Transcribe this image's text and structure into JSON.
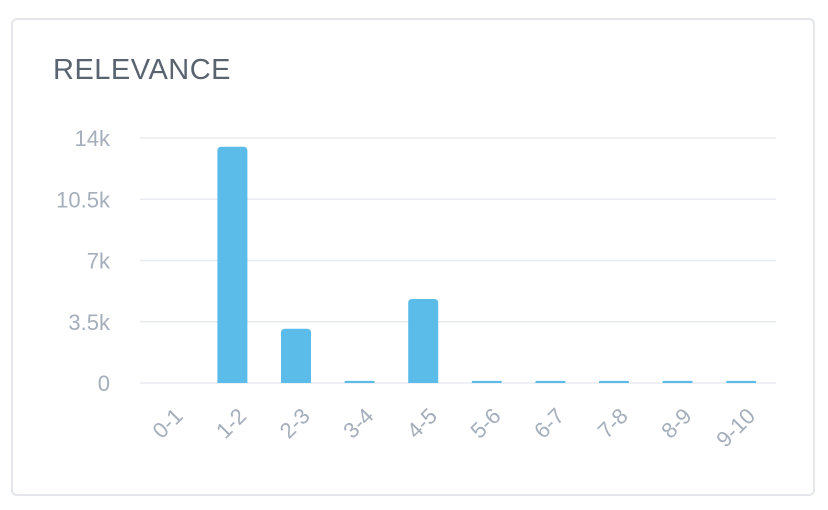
{
  "card": {
    "title": "RELEVANCE"
  },
  "chart_data": {
    "type": "bar",
    "title": "RELEVANCE",
    "categories": [
      "0-1",
      "1-2",
      "2-3",
      "3-4",
      "4-5",
      "5-6",
      "6-7",
      "7-8",
      "8-9",
      "9-10"
    ],
    "values": [
      0,
      13500,
      3100,
      120,
      4800,
      120,
      120,
      120,
      120,
      120
    ],
    "ylim": [
      0,
      14000
    ],
    "yticks": [
      0,
      3500,
      7000,
      10500,
      14000
    ],
    "ytick_labels": [
      "0",
      "3.5k",
      "7k",
      "10.5k",
      "14k"
    ],
    "xlabel": "",
    "ylabel": "",
    "grid": true,
    "bar_color": "#5bbce9",
    "grid_color": "#e8ebef",
    "label_color": "#a5aebb"
  }
}
